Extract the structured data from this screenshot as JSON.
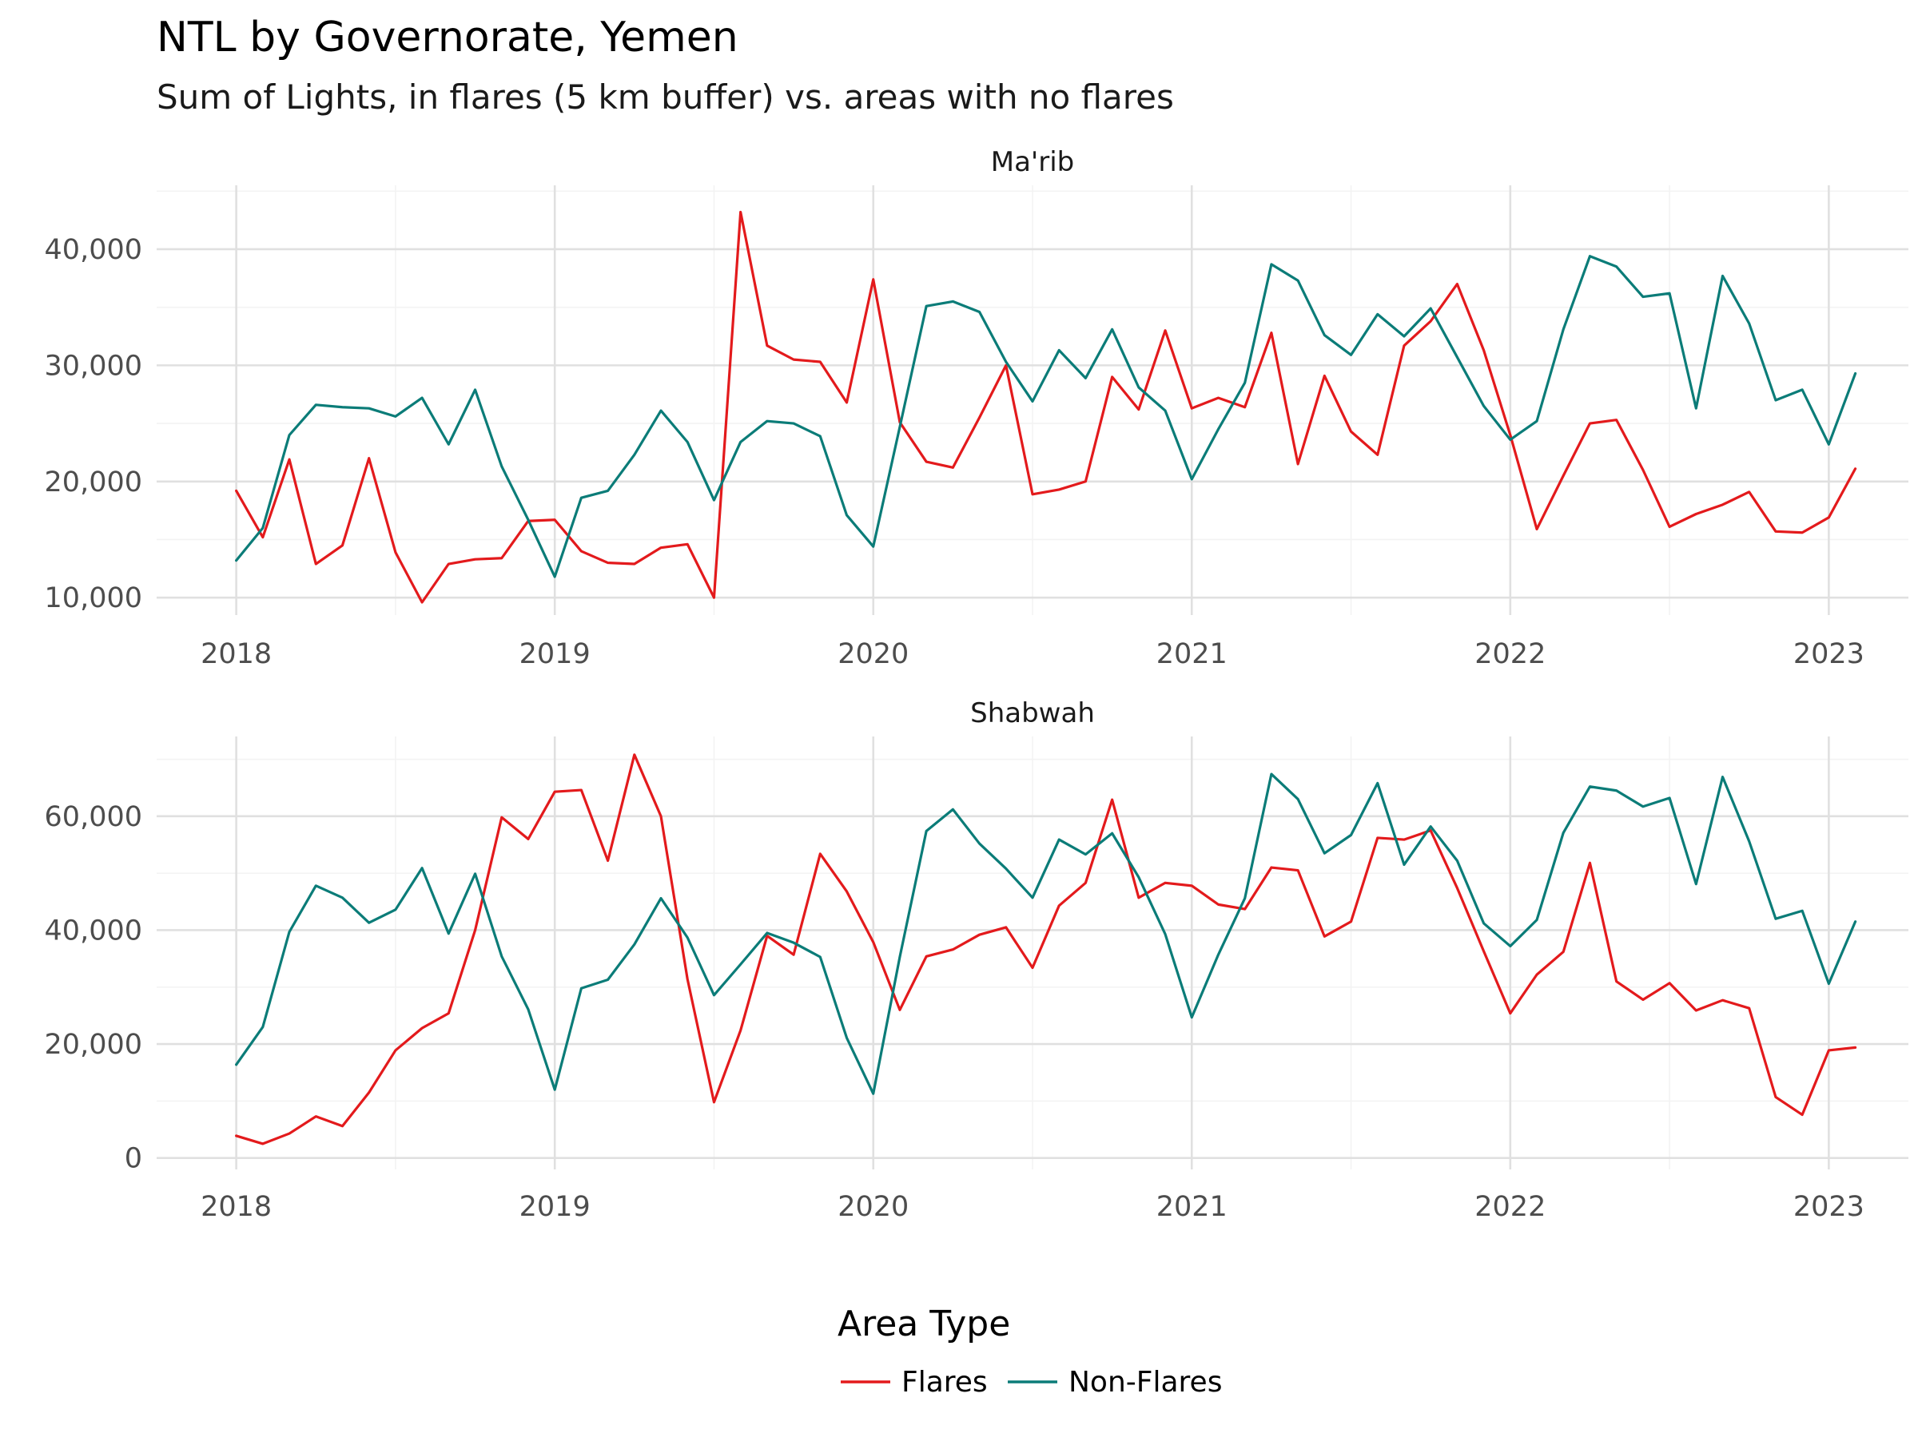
{
  "chart_data": {
    "type": "line",
    "title": "NTL by Governorate, Yemen",
    "subtitle": "Sum of Lights, in flares (5 km buffer) vs. areas with no flares",
    "xlabel": "",
    "ylabel": "",
    "grid": true,
    "legend": {
      "title": "Area Type",
      "placement": "bottom",
      "entries": [
        {
          "name": "Flares",
          "color": "#e31a1c"
        },
        {
          "name": "Non-Flares",
          "color": "#0b7c78"
        }
      ]
    },
    "x_ticks": [
      "2018",
      "2019",
      "2020",
      "2021",
      "2022",
      "2023"
    ],
    "x_range": [
      "2017-10",
      "2023-04"
    ],
    "x": [
      "2018-01",
      "2018-02",
      "2018-03",
      "2018-04",
      "2018-05",
      "2018-06",
      "2018-07",
      "2018-08",
      "2018-09",
      "2018-10",
      "2018-11",
      "2018-12",
      "2019-01",
      "2019-02",
      "2019-03",
      "2019-04",
      "2019-05",
      "2019-06",
      "2019-07",
      "2019-08",
      "2019-09",
      "2019-10",
      "2019-11",
      "2019-12",
      "2020-01",
      "2020-02",
      "2020-03",
      "2020-04",
      "2020-05",
      "2020-06",
      "2020-07",
      "2020-08",
      "2020-09",
      "2020-10",
      "2020-11",
      "2020-12",
      "2021-01",
      "2021-02",
      "2021-03",
      "2021-04",
      "2021-05",
      "2021-06",
      "2021-07",
      "2021-08",
      "2021-09",
      "2021-10",
      "2021-11",
      "2021-12",
      "2022-01",
      "2022-02",
      "2022-03",
      "2022-04",
      "2022-05",
      "2022-06",
      "2022-07",
      "2022-08",
      "2022-09",
      "2022-10",
      "2022-11",
      "2022-12",
      "2023-01",
      "2023-02"
    ],
    "panels": [
      {
        "name": "Ma'rib",
        "ylim": [
          8500,
          45500
        ],
        "y_ticks": [
          10000,
          20000,
          30000,
          40000
        ],
        "y_tick_labels": [
          "10,000",
          "20,000",
          "30,000",
          "40,000"
        ],
        "series": [
          {
            "name": "Flares",
            "color": "#e31a1c",
            "values": [
              19200,
              15200,
              21900,
              12900,
              14500,
              22000,
              13900,
              9600,
              12900,
              13300,
              13400,
              16600,
              16700,
              14000,
              13000,
              12900,
              14300,
              14600,
              10000,
              43200,
              31700,
              30500,
              30300,
              26800,
              37400,
              25100,
              21700,
              21200,
              25500,
              30000,
              18900,
              19300,
              20000,
              29000,
              26200,
              33000,
              26300,
              27200,
              26400,
              32800,
              21500,
              29100,
              24300,
              22300,
              31700,
              33800,
              37000,
              31300,
              24000,
              15900,
              20500,
              25000,
              25300,
              21000,
              16100,
              17200,
              18000,
              19100,
              15700,
              15600,
              16900,
              21100
            ]
          },
          {
            "name": "Non-Flares",
            "color": "#0b7c78",
            "values": [
              13200,
              16000,
              24000,
              26600,
              26400,
              26300,
              25600,
              27200,
              23200,
              27900,
              21300,
              16700,
              11800,
              18600,
              19200,
              22300,
              26100,
              23400,
              18400,
              23400,
              25200,
              25000,
              23900,
              17100,
              14400,
              24700,
              35100,
              35500,
              34600,
              30300,
              26900,
              31300,
              28900,
              33100,
              28100,
              26100,
              20200,
              24500,
              28500,
              38700,
              37300,
              32600,
              30900,
              34400,
              32500,
              34900,
              30700,
              26500,
              23600,
              25200,
              33100,
              39400,
              38500,
              35900,
              36200,
              26300,
              37700,
              33600,
              27000,
              27900,
              23200,
              29300
            ]
          }
        ]
      },
      {
        "name": "Shabwah",
        "ylim": [
          -2000,
          74000
        ],
        "y_ticks": [
          0,
          20000,
          40000,
          60000
        ],
        "y_tick_labels": [
          "0",
          "20,000",
          "40,000",
          "60,000"
        ],
        "series": [
          {
            "name": "Flares",
            "color": "#e31a1c",
            "values": [
              3900,
              2500,
              4300,
              7300,
              5600,
              11500,
              18900,
              22800,
              25400,
              40000,
              59800,
              56000,
              64300,
              64600,
              52200,
              70800,
              60000,
              31400,
              9800,
              22400,
              39000,
              35700,
              53400,
              46800,
              37900,
              26000,
              35400,
              36600,
              39200,
              40500,
              33400,
              44300,
              48300,
              62900,
              45700,
              48300,
              47800,
              44500,
              43700,
              51000,
              50500,
              38900,
              41500,
              56200,
              55900,
              57500,
              47400,
              36300,
              25400,
              32200,
              36200,
              51800,
              31000,
              27800,
              30700,
              25900,
              27700,
              26300,
              10700,
              7600,
              18900,
              19400
            ]
          },
          {
            "name": "Non-Flares",
            "color": "#0b7c78",
            "values": [
              16400,
              23000,
              39700,
              47800,
              45700,
              41300,
              43600,
              50900,
              39400,
              49900,
              35400,
              26100,
              12000,
              29800,
              31300,
              37500,
              45600,
              38700,
              28600,
              34000,
              39500,
              37800,
              35300,
              21100,
              11300,
              35300,
              57400,
              61200,
              55200,
              50800,
              45700,
              55900,
              53300,
              57000,
              49300,
              39300,
              24700,
              35700,
              45600,
              67400,
              63000,
              53500,
              56700,
              65800,
              51500,
              58200,
              52200,
              41200,
              37200,
              41800,
              57100,
              65200,
              64500,
              61700,
              63200,
              48100,
              66900,
              55600,
              42000,
              43400,
              30600,
              41500
            ]
          }
        ]
      }
    ]
  }
}
